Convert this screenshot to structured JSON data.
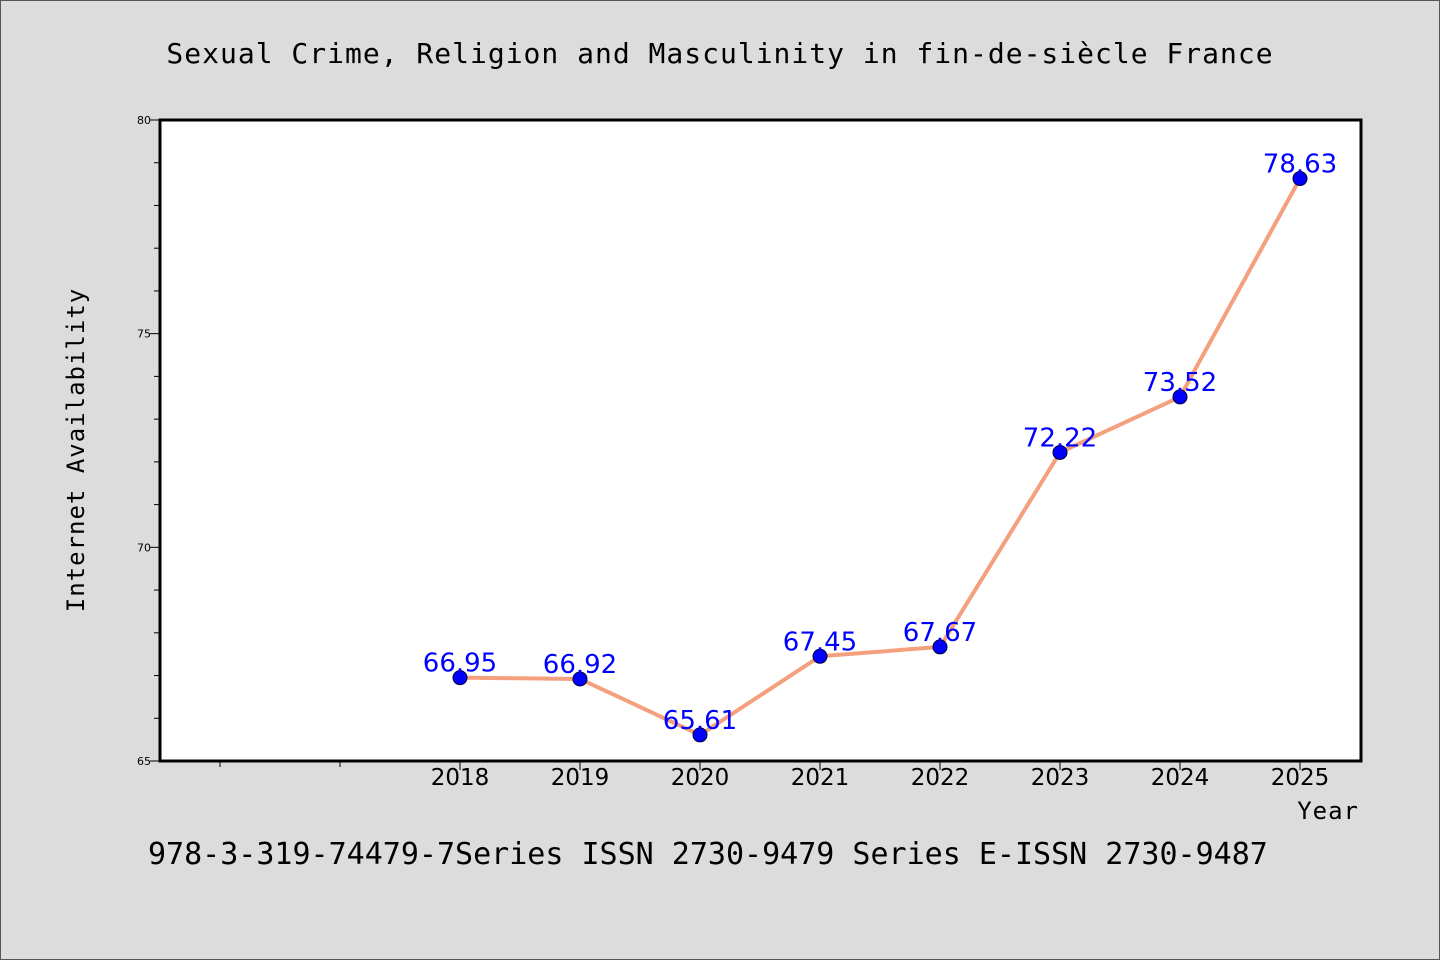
{
  "page": {
    "title": "Sexual Crime, Religion and Masculinity in fin-de-siècle France",
    "footer": "978-3-319-74479-7Series ISSN 2730-9479 Series E-ISSN 2730-9487"
  },
  "colors": {
    "background": "#dcdcdc",
    "plot_background": "#ffffff",
    "line": "#f4a07e",
    "marker": "#0000ff",
    "data_label": "#0000ff"
  },
  "chart_data": {
    "type": "line",
    "title": "Sexual Crime, Religion and Masculinity in fin-de-siècle France",
    "xlabel": "Year",
    "ylabel": "Internet Availability",
    "categories": [
      "2018",
      "2019",
      "2020",
      "2021",
      "2022",
      "2023",
      "2024",
      "2025"
    ],
    "x_slots_before_first_category": 2,
    "series": [
      {
        "values": [
          66.95,
          66.92,
          65.61,
          67.45,
          67.67,
          72.22,
          73.52,
          78.63
        ],
        "labels": [
          "66.95",
          "66.92",
          "65.61",
          "67.45",
          "67.67",
          "72.22",
          "73.52",
          "78.63"
        ]
      }
    ],
    "ylim": [
      65,
      80
    ],
    "yticks": [
      65,
      70,
      75,
      80
    ],
    "yticks_labels": [
      "65",
      "70",
      "75",
      "80"
    ],
    "y_minor_step": 1,
    "grid": false,
    "legend": "none"
  }
}
